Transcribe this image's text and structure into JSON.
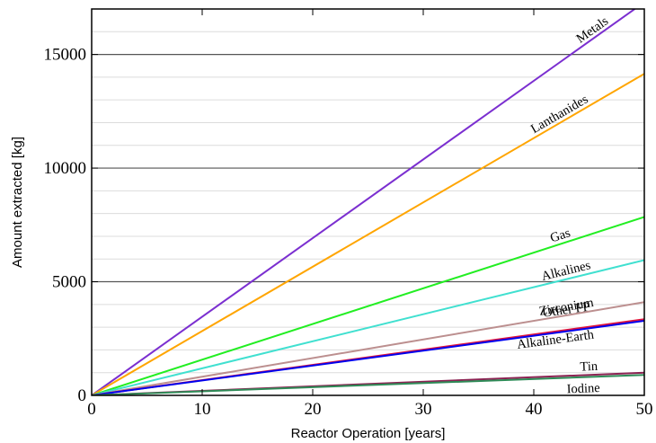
{
  "chart_data": {
    "type": "line",
    "xlabel": "Reactor Operation [years]",
    "ylabel": "Amount extracted [kg]",
    "xlim": [
      0,
      50
    ],
    "ylim": [
      0,
      17000
    ],
    "xticks": [
      "0",
      "10",
      "20",
      "30",
      "40",
      "50"
    ],
    "yticks": [
      "0",
      "5000",
      "10000",
      "15000"
    ],
    "grid": "major and minor horizontal lines",
    "series": [
      {
        "name": "Metals",
        "color": "#7b2fd0",
        "x": [
          0,
          50
        ],
        "y": [
          0,
          17300
        ]
      },
      {
        "name": "Lanthanides",
        "color": "#ffa500",
        "x": [
          0,
          50
        ],
        "y": [
          0,
          14150
        ]
      },
      {
        "name": "Gas",
        "color": "#22ee22",
        "x": [
          0,
          50
        ],
        "y": [
          0,
          7850
        ]
      },
      {
        "name": "Alkalines",
        "color": "#40e0d0",
        "x": [
          0,
          50
        ],
        "y": [
          0,
          5950
        ]
      },
      {
        "name": "Zirconium",
        "color": "#bc8f8f",
        "x": [
          0,
          50
        ],
        "y": [
          0,
          4100
        ]
      },
      {
        "name": "Other FP",
        "color": "#e0143c",
        "x": [
          0,
          50
        ],
        "y": [
          0,
          3350
        ]
      },
      {
        "name": "Alkaline-Earth",
        "color": "#0000ee",
        "x": [
          0,
          50
        ],
        "y": [
          0,
          3280
        ]
      },
      {
        "name": "Tin",
        "color": "#8b2252",
        "x": [
          0,
          50
        ],
        "y": [
          0,
          1000
        ]
      },
      {
        "name": "Iodine",
        "color": "#2e8b57",
        "x": [
          0,
          50
        ],
        "y": [
          0,
          900
        ]
      }
    ]
  }
}
